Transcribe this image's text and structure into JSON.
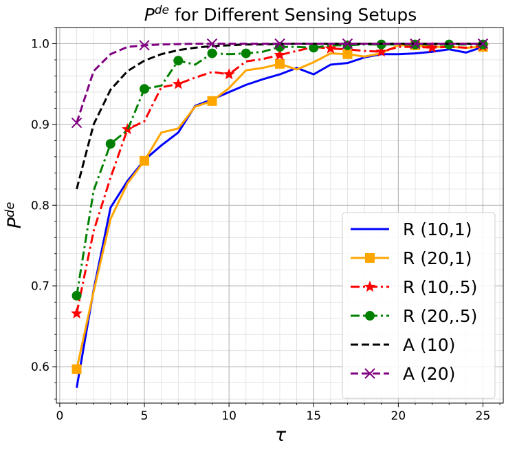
{
  "chart_data": {
    "type": "line",
    "title_base": "P",
    "title_sup": "de",
    "title_rest": " for Different Sensing Setups",
    "xlabel": "τ",
    "ylabel_base": "P",
    "ylabel_sup": "de",
    "xlim": [
      -0.2,
      26.2
    ],
    "ylim": [
      0.555,
      1.02
    ],
    "xticks": [
      0,
      5,
      10,
      15,
      20,
      25
    ],
    "xtick_labels": [
      "0",
      "5",
      "10",
      "15",
      "20",
      "25"
    ],
    "yticks": [
      0.6,
      0.7,
      0.8,
      0.9,
      1.0
    ],
    "ytick_labels": [
      "0.6",
      "0.7",
      "0.8",
      "0.9",
      "1.0"
    ],
    "grid": true,
    "legend_position": "lower-right",
    "series": [
      {
        "name": "R (10,1)",
        "color": "#0000ff",
        "linestyle": "solid",
        "marker": "none",
        "x": [
          1,
          2,
          3,
          4,
          5,
          6,
          7,
          8,
          9,
          10,
          11,
          12,
          13,
          14,
          15,
          16,
          17,
          18,
          19,
          20,
          21,
          22,
          23,
          24,
          25
        ],
        "y": [
          0.574,
          0.695,
          0.797,
          0.83,
          0.856,
          0.874,
          0.89,
          0.923,
          0.931,
          0.94,
          0.949,
          0.956,
          0.962,
          0.97,
          0.962,
          0.974,
          0.976,
          0.983,
          0.987,
          0.987,
          0.988,
          0.99,
          0.993,
          0.989,
          0.996
        ]
      },
      {
        "name": "R (20,1)",
        "color": "#ffa500",
        "linestyle": "solid",
        "marker": "square",
        "x": [
          1,
          2,
          3,
          4,
          5,
          6,
          7,
          8,
          9,
          10,
          11,
          12,
          13,
          14,
          15,
          16,
          17,
          18,
          19,
          20,
          21,
          22,
          23,
          24,
          25
        ],
        "y": [
          0.597,
          0.693,
          0.783,
          0.827,
          0.855,
          0.89,
          0.895,
          0.922,
          0.929,
          0.945,
          0.967,
          0.97,
          0.975,
          0.968,
          0.977,
          0.988,
          0.987,
          0.984,
          0.988,
          0.998,
          0.998,
          0.996,
          0.996,
          0.995,
          0.996
        ],
        "marker_x": [
          1,
          5,
          9,
          13,
          17,
          21,
          25
        ],
        "marker_y": [
          0.597,
          0.855,
          0.929,
          0.975,
          0.987,
          0.998,
          0.996
        ]
      },
      {
        "name": "R (10,.5)",
        "color": "#ff0000",
        "linestyle": "dashdot",
        "marker": "star",
        "x": [
          1,
          2,
          3,
          4,
          5,
          6,
          7,
          8,
          9,
          10,
          11,
          12,
          13,
          14,
          15,
          16,
          17,
          18,
          19,
          20,
          21,
          22,
          23,
          24,
          25
        ],
        "y": [
          0.666,
          0.768,
          0.834,
          0.894,
          0.904,
          0.946,
          0.95,
          0.958,
          0.965,
          0.962,
          0.978,
          0.981,
          0.986,
          0.991,
          0.996,
          0.994,
          0.993,
          0.991,
          0.99,
          0.996,
          0.996,
          0.995,
          0.996,
          0.995,
          0.997
        ],
        "marker_x": [
          1,
          4,
          7,
          10,
          13,
          16,
          19,
          22,
          25
        ],
        "marker_y": [
          0.666,
          0.894,
          0.95,
          0.962,
          0.986,
          0.994,
          0.99,
          0.995,
          0.997
        ]
      },
      {
        "name": "R (20,.5)",
        "color": "#008000",
        "linestyle": "dashdot",
        "marker": "circle",
        "x": [
          1,
          2,
          3,
          4,
          5,
          6,
          7,
          8,
          9,
          10,
          11,
          12,
          13,
          14,
          15,
          16,
          17,
          18,
          19,
          20,
          21,
          22,
          23,
          24,
          25
        ],
        "y": [
          0.688,
          0.818,
          0.876,
          0.893,
          0.944,
          0.948,
          0.979,
          0.974,
          0.988,
          0.987,
          0.988,
          0.99,
          0.996,
          0.996,
          0.995,
          0.998,
          0.998,
          0.999,
          0.999,
          0.999,
          0.999,
          0.999,
          0.999,
          0.999,
          0.999
        ],
        "marker_x": [
          1,
          3,
          5,
          7,
          9,
          11,
          13,
          15,
          17,
          19,
          21,
          23,
          25
        ],
        "marker_y": [
          0.688,
          0.876,
          0.944,
          0.979,
          0.988,
          0.988,
          0.996,
          0.995,
          0.998,
          0.999,
          0.999,
          0.999,
          0.999
        ]
      },
      {
        "name": "A (10)",
        "color": "#000000",
        "linestyle": "dashed",
        "marker": "none",
        "x": [
          1,
          2,
          3,
          4,
          5,
          6,
          7,
          8,
          9,
          10,
          11,
          12,
          13,
          14,
          15,
          16,
          17,
          18,
          19,
          20,
          21,
          22,
          23,
          24,
          25
        ],
        "y": [
          0.82,
          0.9,
          0.943,
          0.966,
          0.979,
          0.987,
          0.992,
          0.995,
          0.997,
          0.998,
          0.999,
          0.999,
          1.0,
          1.0,
          1.0,
          1.0,
          1.0,
          1.0,
          1.0,
          1.0,
          1.0,
          1.0,
          1.0,
          1.0,
          1.0
        ]
      },
      {
        "name": "A (20)",
        "color": "#800080",
        "linestyle": "dashed",
        "marker": "x",
        "x": [
          1,
          2,
          3,
          4,
          5,
          6,
          7,
          8,
          9,
          10,
          11,
          12,
          13,
          14,
          15,
          16,
          17,
          18,
          19,
          20,
          21,
          22,
          23,
          24,
          25
        ],
        "y": [
          0.902,
          0.966,
          0.987,
          0.996,
          0.998,
          0.999,
          0.9995,
          1.0,
          1.0,
          1.0,
          1.0,
          1.0,
          1.0,
          1.0,
          1.0,
          1.0,
          1.0,
          1.0,
          1.0,
          1.0,
          1.0,
          1.0,
          1.0,
          1.0,
          1.0
        ],
        "marker_x": [
          1,
          5,
          9,
          13,
          17,
          21,
          25
        ],
        "marker_y": [
          0.902,
          0.998,
          1.0,
          1.0,
          1.0,
          1.0,
          1.0
        ]
      }
    ]
  }
}
